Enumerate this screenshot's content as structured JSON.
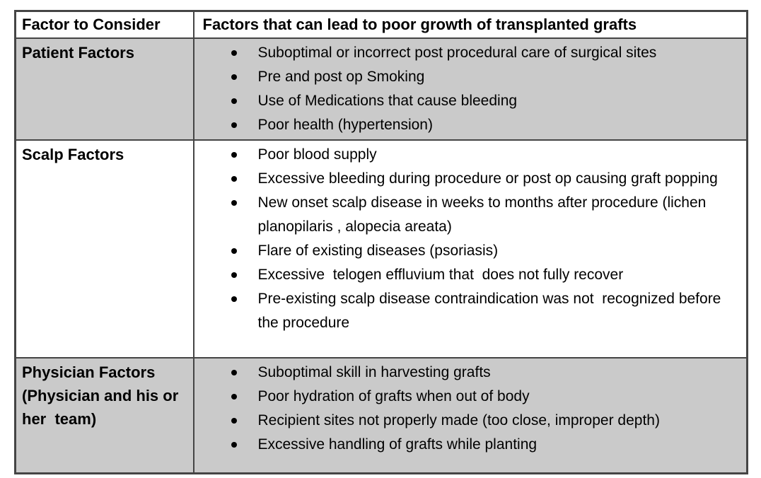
{
  "document": {
    "table": {
      "headers": {
        "factor": "Factor to Consider",
        "details": "Factors that can lead to poor growth of transplanted grafts"
      },
      "rows": [
        {
          "factor": "Patient Factors",
          "shaded": true,
          "items": [
            "Suboptimal or incorrect post procedural care of surgical sites",
            "Pre and post op Smoking",
            "Use of Medications that cause bleeding",
            "Poor health (hypertension)"
          ]
        },
        {
          "factor": "Scalp Factors",
          "shaded": false,
          "items": [
            "Poor blood supply",
            "Excessive bleeding during procedure or post op causing graft popping",
            "New onset scalp disease in weeks to months after procedure (lichen planopilaris , alopecia areata)",
            "Flare of existing diseases (psoriasis)",
            "Excessive  telogen effluvium that  does not fully recover",
            "Pre-existing scalp disease contraindication was not  recognized before the procedure"
          ]
        },
        {
          "factor": "Physician Factors (Physician and his or her  team)",
          "shaded": true,
          "items": [
            "Suboptimal skill in harvesting grafts",
            "Poor hydration of grafts when out of body",
            "Recipient sites not properly made (too close, improper depth)",
            "Excessive handling of grafts while planting"
          ]
        }
      ],
      "colors": {
        "shaded_row_bg": "#cacaca",
        "header_bg": "#ffffff",
        "border": "#454545",
        "text": "#000000"
      }
    }
  }
}
